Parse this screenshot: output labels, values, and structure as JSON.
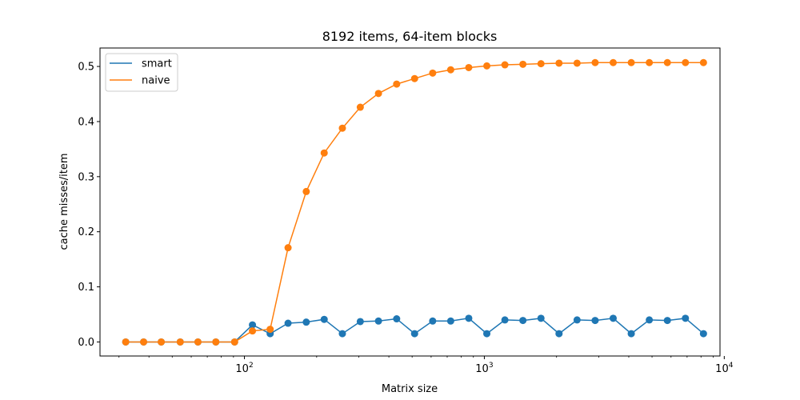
{
  "chart_data": {
    "type": "line",
    "title": "8192 items, 64-item blocks",
    "xlabel": "Matrix size",
    "ylabel": "cache misses/item",
    "xscale": "log",
    "xlim": [
      25,
      9600
    ],
    "ylim": [
      -0.0255,
      0.5335
    ],
    "grid": false,
    "legend_position": "top-left",
    "x_ticks": [
      {
        "value": 100,
        "base": "10",
        "exp": "2"
      },
      {
        "value": 1000,
        "base": "10",
        "exp": "3"
      },
      {
        "value": 10000,
        "base": "10",
        "exp": "4"
      }
    ],
    "y_ticks": [
      {
        "value": 0.0,
        "label": "0.0"
      },
      {
        "value": 0.1,
        "label": "0.1"
      },
      {
        "value": 0.2,
        "label": "0.2"
      },
      {
        "value": 0.3,
        "label": "0.3"
      },
      {
        "value": 0.4,
        "label": "0.4"
      },
      {
        "value": 0.5,
        "label": "0.5"
      }
    ],
    "x": [
      32,
      38,
      45,
      54,
      64,
      76,
      91,
      108,
      128,
      152,
      181,
      215,
      256,
      304,
      362,
      431,
      512,
      609,
      724,
      861,
      1024,
      1218,
      1448,
      1722,
      2048,
      2435,
      2896,
      3444,
      4096,
      4871,
      5793,
      6889,
      8192
    ],
    "series": [
      {
        "name": "smart",
        "color": "#1f77b4",
        "values": [
          0,
          0,
          0,
          0,
          0,
          0,
          0,
          0.031,
          0.015,
          0.034,
          0.036,
          0.041,
          0.015,
          0.037,
          0.038,
          0.042,
          0.015,
          0.038,
          0.038,
          0.043,
          0.015,
          0.04,
          0.039,
          0.043,
          0.015,
          0.04,
          0.039,
          0.043,
          0.015,
          0.04,
          0.039,
          0.043,
          0.015
        ]
      },
      {
        "name": "naive",
        "color": "#ff7f0e",
        "values": [
          0,
          0,
          0,
          0,
          0,
          0,
          0,
          0.02,
          0.023,
          0.171,
          0.273,
          0.343,
          0.388,
          0.426,
          0.451,
          0.468,
          0.478,
          0.488,
          0.494,
          0.498,
          0.501,
          0.503,
          0.504,
          0.505,
          0.506,
          0.506,
          0.507,
          0.507,
          0.507,
          0.507,
          0.507,
          0.507,
          0.507
        ]
      }
    ]
  }
}
